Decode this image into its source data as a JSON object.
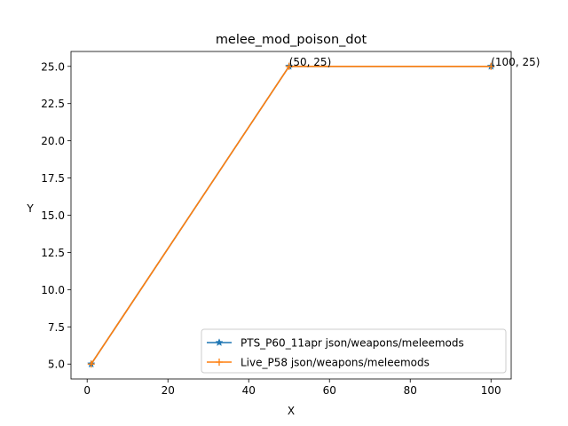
{
  "chart_data": {
    "type": "line",
    "title": "melee_mod_poison_dot",
    "xlabel": "X",
    "ylabel": "Y",
    "xlim": [
      -4,
      105
    ],
    "ylim": [
      4.0,
      26.0
    ],
    "xticks": [
      0,
      20,
      40,
      60,
      80,
      100
    ],
    "yticks": [
      5.0,
      7.5,
      10.0,
      12.5,
      15.0,
      17.5,
      20.0,
      22.5,
      25.0
    ],
    "grid": false,
    "legend_position": "lower-right",
    "series": [
      {
        "name": "PTS_P60_11apr json/weapons/meleemods",
        "color": "#1f77b4",
        "marker": "star",
        "x": [
          1,
          50,
          100
        ],
        "y": [
          5,
          25,
          25
        ]
      },
      {
        "name": "Live_P58 json/weapons/meleemods",
        "color": "#ff7f0e",
        "marker": "plus",
        "x": [
          1,
          50,
          100
        ],
        "y": [
          5,
          25,
          25
        ]
      }
    ],
    "annotations": [
      {
        "text": "(50, 25)",
        "x": 50,
        "y": 25
      },
      {
        "text": "(100, 25)",
        "x": 100,
        "y": 25
      }
    ]
  }
}
